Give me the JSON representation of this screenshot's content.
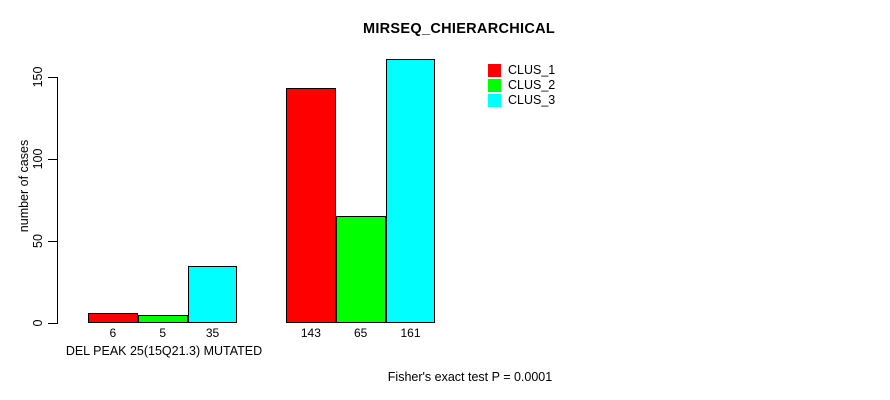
{
  "chart_data": {
    "type": "bar",
    "title": "MIRSEQ_CHIERARCHICAL",
    "ylabel": "number of cases",
    "xlabel": "",
    "ylim": [
      0,
      161
    ],
    "y_ticks": [
      0,
      50,
      100,
      150
    ],
    "categories": [
      "DEL PEAK 25(15Q21.3) MUTATED",
      ""
    ],
    "series": [
      {
        "name": "CLUS_1",
        "color": "#ff0000",
        "values": [
          6,
          143
        ]
      },
      {
        "name": "CLUS_2",
        "color": "#00ff00",
        "values": [
          5,
          65
        ]
      },
      {
        "name": "CLUS_3",
        "color": "#00ffff",
        "values": [
          35,
          161
        ]
      }
    ],
    "annotation": "Fisher's exact test P = 0.0001",
    "legend_position": "top-right",
    "grid": false,
    "background_color": "#ffffff",
    "text_color": "#000000",
    "bar_border_color": "#000000"
  }
}
